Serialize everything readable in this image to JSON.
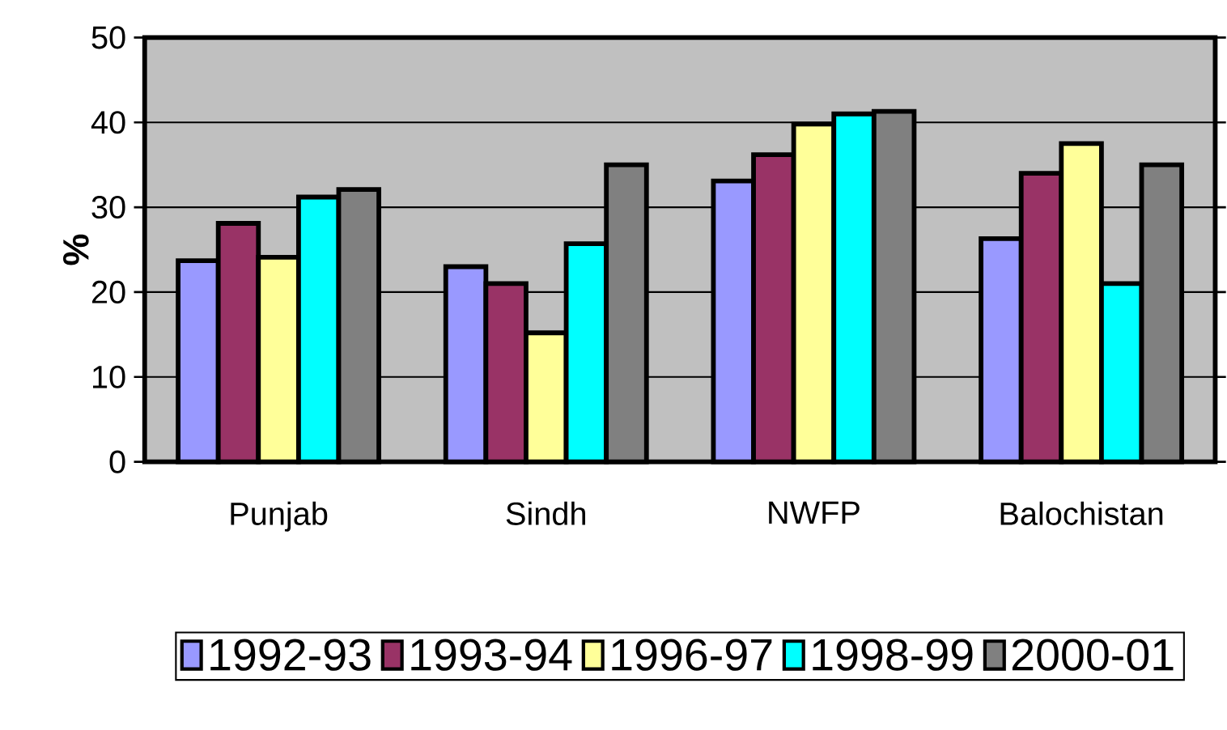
{
  "chart_data": {
    "type": "bar",
    "ylabel": "%",
    "categories": [
      "Punjab",
      "Sindh",
      "NWFP",
      "Balochistan"
    ],
    "series": [
      {
        "name": "1992-93",
        "color": "#9999ff",
        "values": [
          23.7,
          23.0,
          33.1,
          26.3
        ]
      },
      {
        "name": "1993-94",
        "color": "#993366",
        "values": [
          28.1,
          21.0,
          36.2,
          34.0
        ]
      },
      {
        "name": "1996-97",
        "color": "#ffff99",
        "values": [
          24.1,
          15.2,
          39.8,
          37.5
        ]
      },
      {
        "name": "1998-99",
        "color": "#00ffff",
        "values": [
          31.2,
          25.7,
          41.0,
          21.0
        ]
      },
      {
        "name": "2000-01",
        "color": "#808080",
        "values": [
          32.1,
          35.0,
          41.3,
          35.0
        ]
      }
    ],
    "ylim": [
      0,
      50
    ],
    "yticks": [
      0,
      10,
      20,
      30,
      40,
      50
    ],
    "grid": "y",
    "legend": "bottom"
  }
}
